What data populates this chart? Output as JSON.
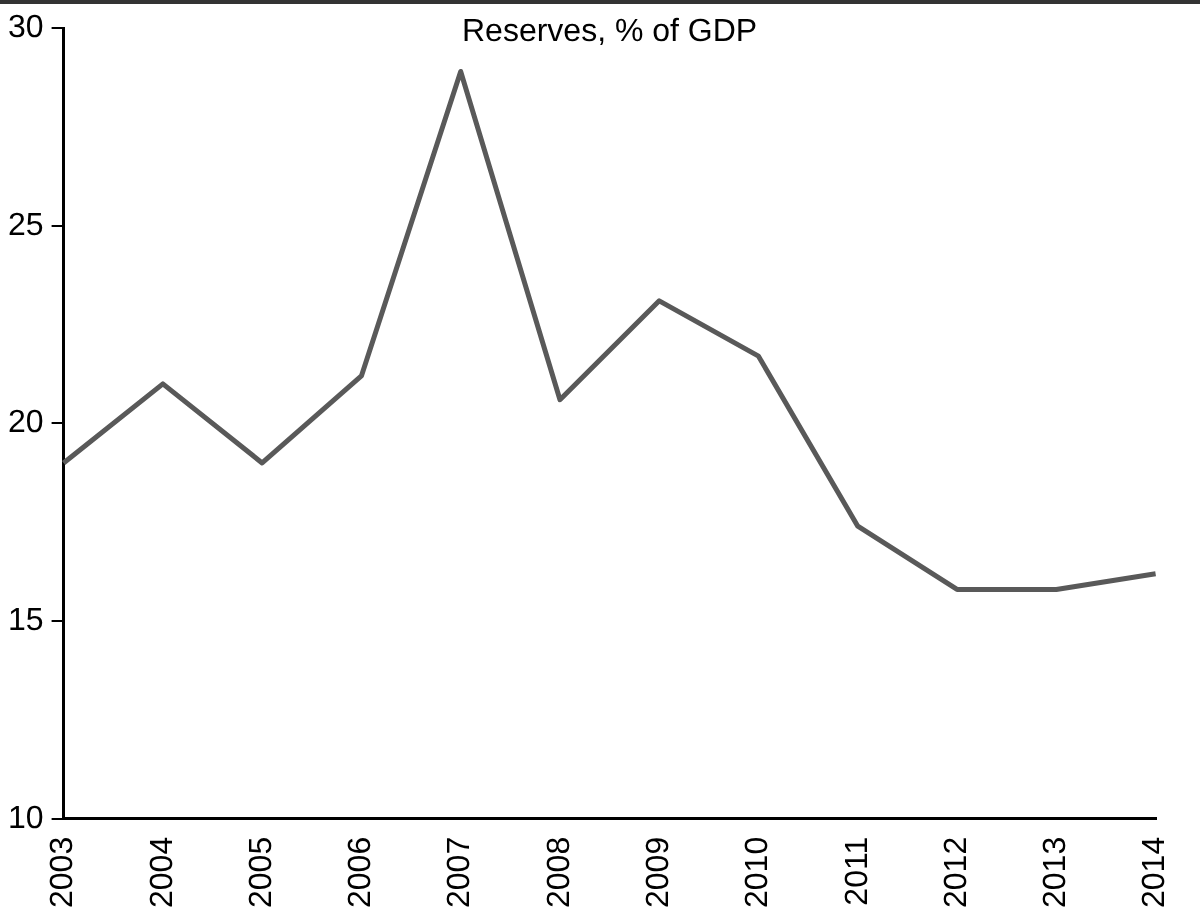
{
  "chart_data": {
    "type": "line",
    "title": "Reserves, % of GDP",
    "categories": [
      "2003",
      "2004",
      "2005",
      "2006",
      "2007",
      "2008",
      "2009",
      "2010",
      "2011",
      "2012",
      "2013",
      "2014"
    ],
    "series": [
      {
        "color": "#595959",
        "values": [
          19.0,
          21.0,
          19.0,
          21.2,
          28.9,
          20.6,
          23.1,
          21.7,
          17.4,
          15.8,
          15.8,
          16.2
        ]
      }
    ],
    "ylim": [
      10,
      30
    ],
    "yticks": [
      10,
      15,
      20,
      25,
      30
    ],
    "grid": false,
    "legend": false,
    "marker": "none",
    "line_style": "solid"
  }
}
